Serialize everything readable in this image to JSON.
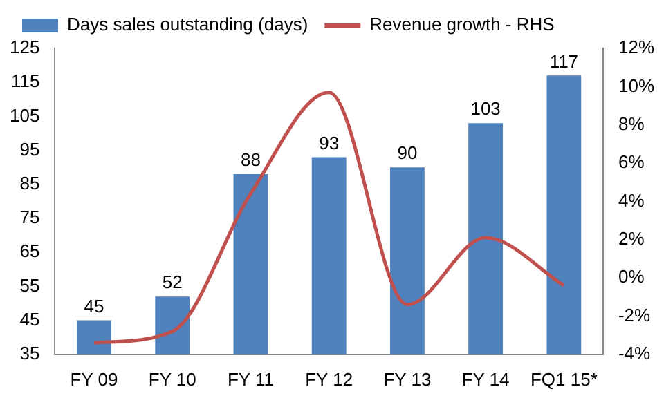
{
  "chart_data": {
    "type": "bar",
    "categories": [
      "FY 09",
      "FY 10",
      "FY 11",
      "FY 12",
      "FY 13",
      "FY 14",
      "FQ1 15*"
    ],
    "series": [
      {
        "name": "Days sales outstanding (days)",
        "color": "#4f81bd",
        "values": [
          45,
          52,
          88,
          93,
          90,
          103,
          117
        ],
        "value_labels": [
          "45",
          "52",
          "88",
          "93",
          "90",
          "103",
          "117"
        ]
      },
      {
        "name": "Revenue growth - RHS",
        "type": "line",
        "axis": "y2",
        "color": "#c0504d",
        "values": [
          -3.4,
          -2.8,
          4.4,
          9.7,
          -1.4,
          2.1,
          -0.4
        ]
      }
    ],
    "ylim": [
      35,
      125
    ],
    "yticks": [
      35,
      45,
      55,
      65,
      75,
      85,
      95,
      105,
      115,
      125
    ],
    "y2lim": [
      -4,
      12
    ],
    "y2ticks": [
      {
        "value": -4,
        "label": "-4%"
      },
      {
        "value": -2,
        "label": "-2%"
      },
      {
        "value": 0,
        "label": "0%"
      },
      {
        "value": 2,
        "label": "2%"
      },
      {
        "value": 4,
        "label": "4%"
      },
      {
        "value": 6,
        "label": "6%"
      },
      {
        "value": 8,
        "label": "8%"
      },
      {
        "value": 10,
        "label": "10%"
      },
      {
        "value": 12,
        "label": "12%"
      }
    ],
    "legend": "top",
    "grid": false,
    "marker": "none",
    "line_style": "solid"
  }
}
